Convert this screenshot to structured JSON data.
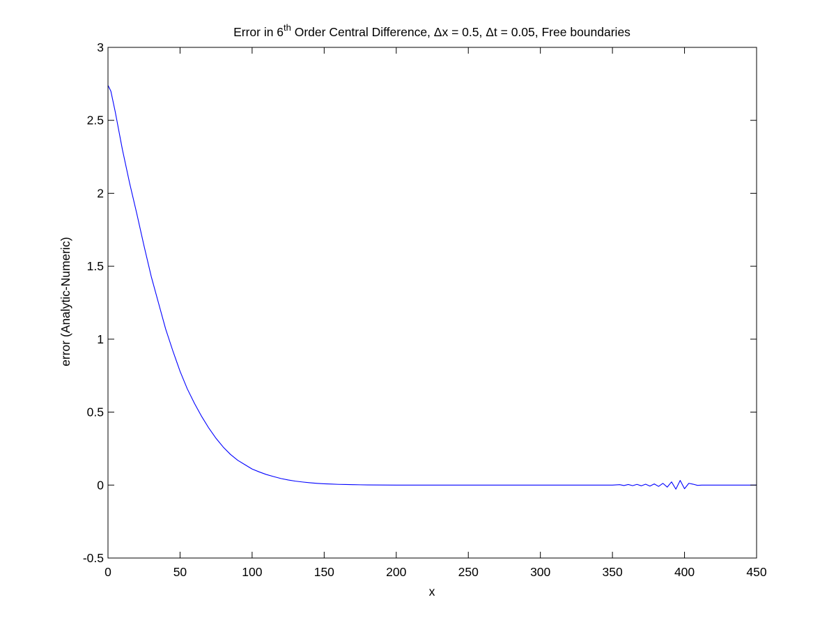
{
  "chart_data": {
    "type": "line",
    "title": {
      "prefix": "Error in 6",
      "superscript": "th",
      "suffix": " Order Central Difference, Δx = 0.5, Δt = 0.05, Free boundaries"
    },
    "xlabel": "x",
    "ylabel": "error (Analytic-Numeric)",
    "xlim": [
      0,
      450
    ],
    "ylim": [
      -0.5,
      3
    ],
    "xticks": [
      0,
      50,
      100,
      150,
      200,
      250,
      300,
      350,
      400,
      450
    ],
    "xtick_labels": [
      "0",
      "50",
      "100",
      "150",
      "200",
      "250",
      "300",
      "350",
      "400",
      "450"
    ],
    "yticks": [
      -0.5,
      0,
      0.5,
      1,
      1.5,
      2,
      2.5,
      3
    ],
    "ytick_labels": [
      "-0.5",
      "0",
      "0.5",
      "1",
      "1.5",
      "2",
      "2.5",
      "3"
    ],
    "grid": false,
    "series": [
      {
        "color": "#0000ff",
        "x": [
          0,
          2,
          5,
          10,
          15,
          20,
          25,
          30,
          35,
          40,
          45,
          50,
          55,
          60,
          65,
          70,
          75,
          80,
          85,
          90,
          95,
          100,
          105,
          110,
          115,
          120,
          125,
          130,
          135,
          140,
          145,
          150,
          155,
          160,
          165,
          170,
          175,
          180,
          190,
          200,
          250,
          300,
          350,
          355,
          358,
          361,
          364,
          367,
          370,
          373,
          376,
          379,
          382,
          385,
          388,
          391,
          394,
          397,
          400,
          403,
          406,
          409,
          412,
          420,
          450
        ],
        "y": [
          2.74,
          2.7,
          2.56,
          2.3,
          2.07,
          1.86,
          1.64,
          1.43,
          1.25,
          1.07,
          0.92,
          0.78,
          0.66,
          0.56,
          0.47,
          0.39,
          0.32,
          0.26,
          0.21,
          0.17,
          0.14,
          0.11,
          0.09,
          0.072,
          0.058,
          0.045,
          0.035,
          0.027,
          0.021,
          0.016,
          0.012,
          0.009,
          0.007,
          0.005,
          0.004,
          0.003,
          0.002,
          0.001,
          0.0005,
          0,
          0,
          0,
          0,
          0.003,
          -0.003,
          0.004,
          -0.004,
          0.005,
          -0.005,
          0.006,
          -0.007,
          0.008,
          -0.009,
          0.012,
          -0.014,
          0.022,
          -0.028,
          0.032,
          -0.025,
          0.012,
          0.006,
          -0.002,
          0,
          0,
          0
        ]
      }
    ]
  }
}
